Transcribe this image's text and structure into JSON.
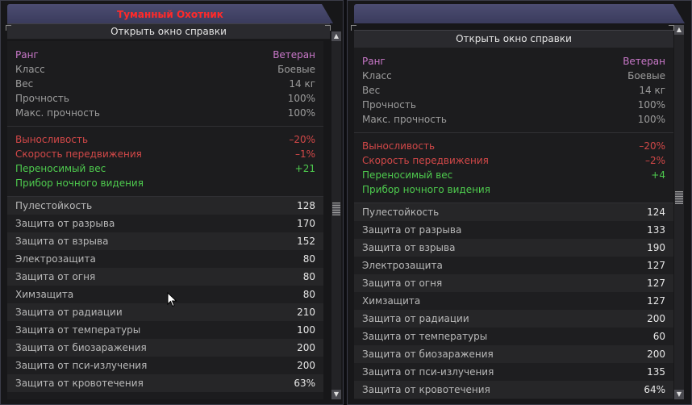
{
  "left": {
    "title": "Туманный Охотник",
    "help": "Открыть окно справки",
    "info": [
      {
        "label": "Ранг",
        "value": "Ветеран",
        "tone": "rank"
      },
      {
        "label": "Класс",
        "value": "Боевые",
        "tone": ""
      },
      {
        "label": "Вес",
        "value": "14 кг",
        "tone": ""
      },
      {
        "label": "Прочность",
        "value": "100%",
        "tone": ""
      },
      {
        "label": "Макс. прочность",
        "value": "100%",
        "tone": ""
      }
    ],
    "effects": [
      {
        "label": "Выносливость",
        "value": "–20%",
        "tone": "neg"
      },
      {
        "label": "Скорость передвижения",
        "value": "–1%",
        "tone": "neg"
      },
      {
        "label": "Переносимый вес",
        "value": "+21",
        "tone": "pos"
      },
      {
        "label": "Прибор ночного видения",
        "value": "",
        "tone": "pos"
      }
    ],
    "stats": [
      {
        "label": "Пулестойкость",
        "value": "128"
      },
      {
        "label": "Защита от разрыва",
        "value": "170"
      },
      {
        "label": "Защита от взрыва",
        "value": "152"
      },
      {
        "label": "Электрозащита",
        "value": "80"
      },
      {
        "label": "Защита от огня",
        "value": "80"
      },
      {
        "label": "Химзащита",
        "value": "80"
      },
      {
        "label": "Защита от радиации",
        "value": "210"
      },
      {
        "label": "Защита от температуры",
        "value": "100"
      },
      {
        "label": "Защита от биозаражения",
        "value": "200"
      },
      {
        "label": "Защита от пси-излучения",
        "value": "200"
      },
      {
        "label": "Защита от кровотечения",
        "value": "63%"
      }
    ]
  },
  "right": {
    "title": "",
    "help": "Открыть окно справки",
    "info": [
      {
        "label": "Ранг",
        "value": "Ветеран",
        "tone": "rank"
      },
      {
        "label": "Класс",
        "value": "Боевые",
        "tone": ""
      },
      {
        "label": "Вес",
        "value": "14 кг",
        "tone": ""
      },
      {
        "label": "Прочность",
        "value": "100%",
        "tone": ""
      },
      {
        "label": "Макс. прочность",
        "value": "100%",
        "tone": ""
      }
    ],
    "effects": [
      {
        "label": "Выносливость",
        "value": "–20%",
        "tone": "neg"
      },
      {
        "label": "Скорость передвижения",
        "value": "–2%",
        "tone": "neg"
      },
      {
        "label": "Переносимый вес",
        "value": "+4",
        "tone": "pos"
      },
      {
        "label": "Прибор ночного видения",
        "value": "",
        "tone": "pos"
      }
    ],
    "stats": [
      {
        "label": "Пулестойкость",
        "value": "124"
      },
      {
        "label": "Защита от разрыва",
        "value": "133"
      },
      {
        "label": "Защита от взрыва",
        "value": "190"
      },
      {
        "label": "Электрозащита",
        "value": "127"
      },
      {
        "label": "Защита от огня",
        "value": "127"
      },
      {
        "label": "Химзащита",
        "value": "127"
      },
      {
        "label": "Защита от радиации",
        "value": "200"
      },
      {
        "label": "Защита от температуры",
        "value": "60"
      },
      {
        "label": "Защита от биозаражения",
        "value": "200"
      },
      {
        "label": "Защита от пси-излучения",
        "value": "135"
      },
      {
        "label": "Защита от кровотечения",
        "value": "64%"
      }
    ]
  },
  "colors": {
    "rank": "#c978c9",
    "negative": "#d24848",
    "positive": "#4ecb4e",
    "title": "#ff2a2a"
  },
  "icons": {
    "scroll_up": "triangle-up",
    "scroll_down": "triangle-down",
    "cursor": "mouse-pointer"
  }
}
